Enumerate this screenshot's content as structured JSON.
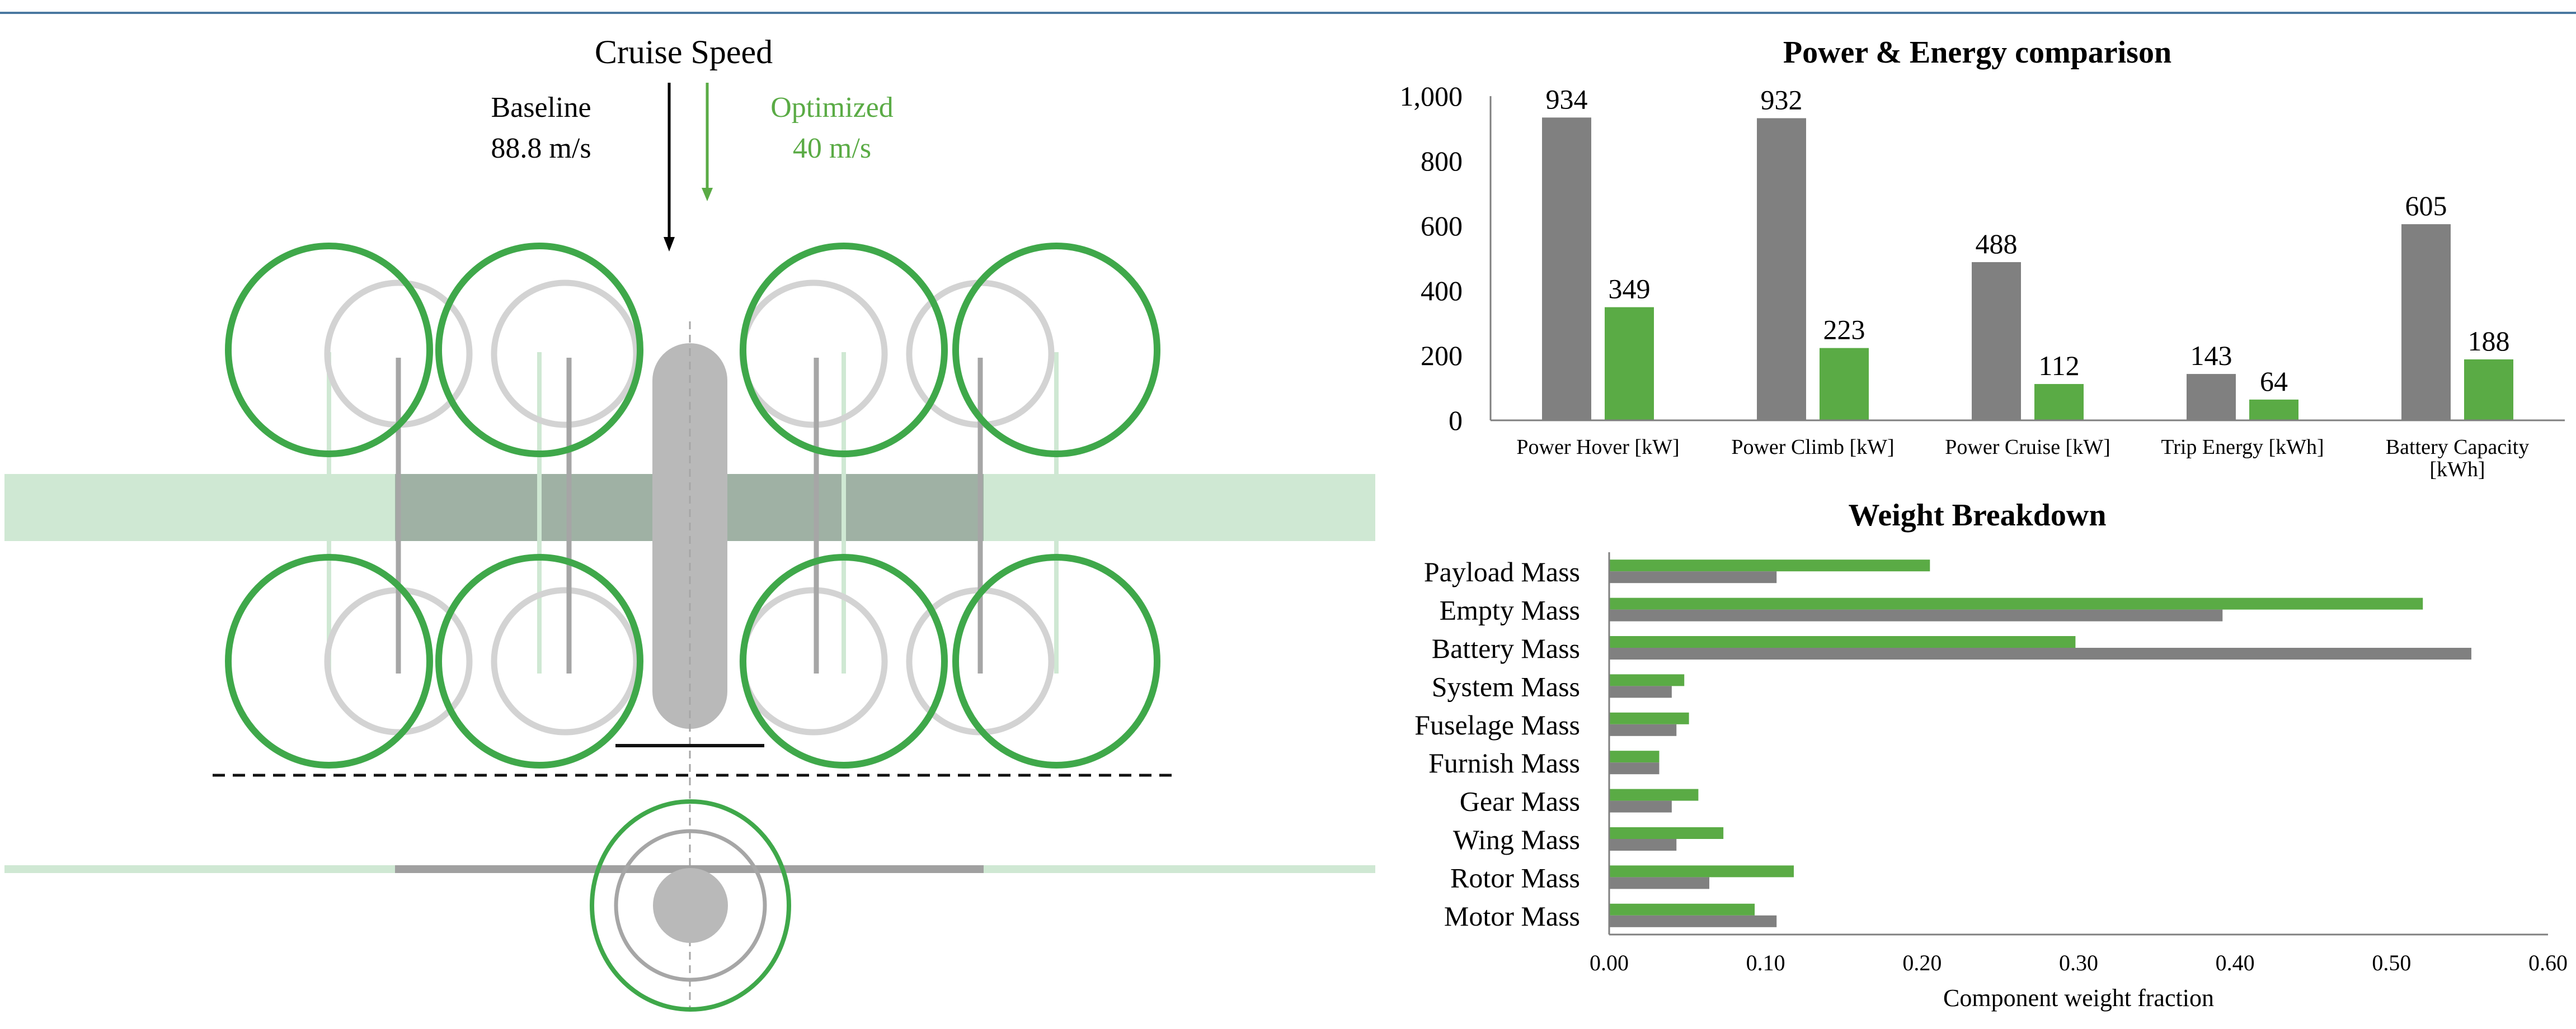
{
  "colors": {
    "baseline": "#808080",
    "optimized": "#5aab45",
    "ring_green": "#3fa84a",
    "ring_grey": "#d3d3d3",
    "wing_green": "#cfe8d3",
    "fuselage_grey": "#b9b9b9",
    "rule_blue": "#4a78a0"
  },
  "diagram": {
    "title": "Cruise Speed",
    "baseline_label": "Baseline",
    "baseline_value": "88.8 m/s",
    "optimized_label": "Optimized",
    "optimized_value": "40 m/s"
  },
  "chart_data": [
    {
      "type": "bar",
      "title": "Power & Energy comparison",
      "categories": [
        "Power Hover [kW]",
        "Power Climb [kW]",
        "Power Cruise [kW]",
        "Trip Energy [kWh]",
        "Battery Capacity [kWh]"
      ],
      "category_lines": [
        [
          "Power Hover [kW]"
        ],
        [
          "Power Climb [kW]"
        ],
        [
          "Power Cruise [kW]"
        ],
        [
          "Trip Energy [kWh]"
        ],
        [
          "Battery Capacity",
          "[kWh]"
        ]
      ],
      "series": [
        {
          "name": "Baseline",
          "values": [
            934,
            932,
            488,
            143,
            605
          ]
        },
        {
          "name": "Optimized",
          "values": [
            349,
            223,
            112,
            64,
            188
          ]
        }
      ],
      "yticks": [
        0,
        200,
        400,
        600,
        800,
        1000
      ],
      "ytick_labels": [
        "0",
        "200",
        "400",
        "600",
        "800",
        "1,000"
      ],
      "ylim": [
        0,
        1000
      ],
      "xlabel": "",
      "ylabel": ""
    },
    {
      "type": "bar",
      "orientation": "horizontal",
      "title": "Weight Breakdown",
      "categories": [
        "Payload Mass",
        "Empty Mass",
        "Battery Mass",
        "System Mass",
        "Fuselage Mass",
        "Furnish Mass",
        "Gear Mass",
        "Wing Mass",
        "Rotor Mass",
        "Motor Mass"
      ],
      "series": [
        {
          "name": "Optimized",
          "values": [
            0.205,
            0.52,
            0.298,
            0.048,
            0.051,
            0.032,
            0.057,
            0.073,
            0.118,
            0.093
          ]
        },
        {
          "name": "Baseline",
          "values": [
            0.107,
            0.392,
            0.551,
            0.04,
            0.043,
            0.032,
            0.04,
            0.043,
            0.064,
            0.107
          ]
        }
      ],
      "xticks": [
        0,
        0.1,
        0.2,
        0.3,
        0.4,
        0.5,
        0.6
      ],
      "xtick_labels": [
        "0.00",
        "0.10",
        "0.20",
        "0.30",
        "0.40",
        "0.50",
        "0.60"
      ],
      "xlim": [
        0,
        0.6
      ],
      "xlabel": "Component weight fraction",
      "ylabel": ""
    }
  ]
}
